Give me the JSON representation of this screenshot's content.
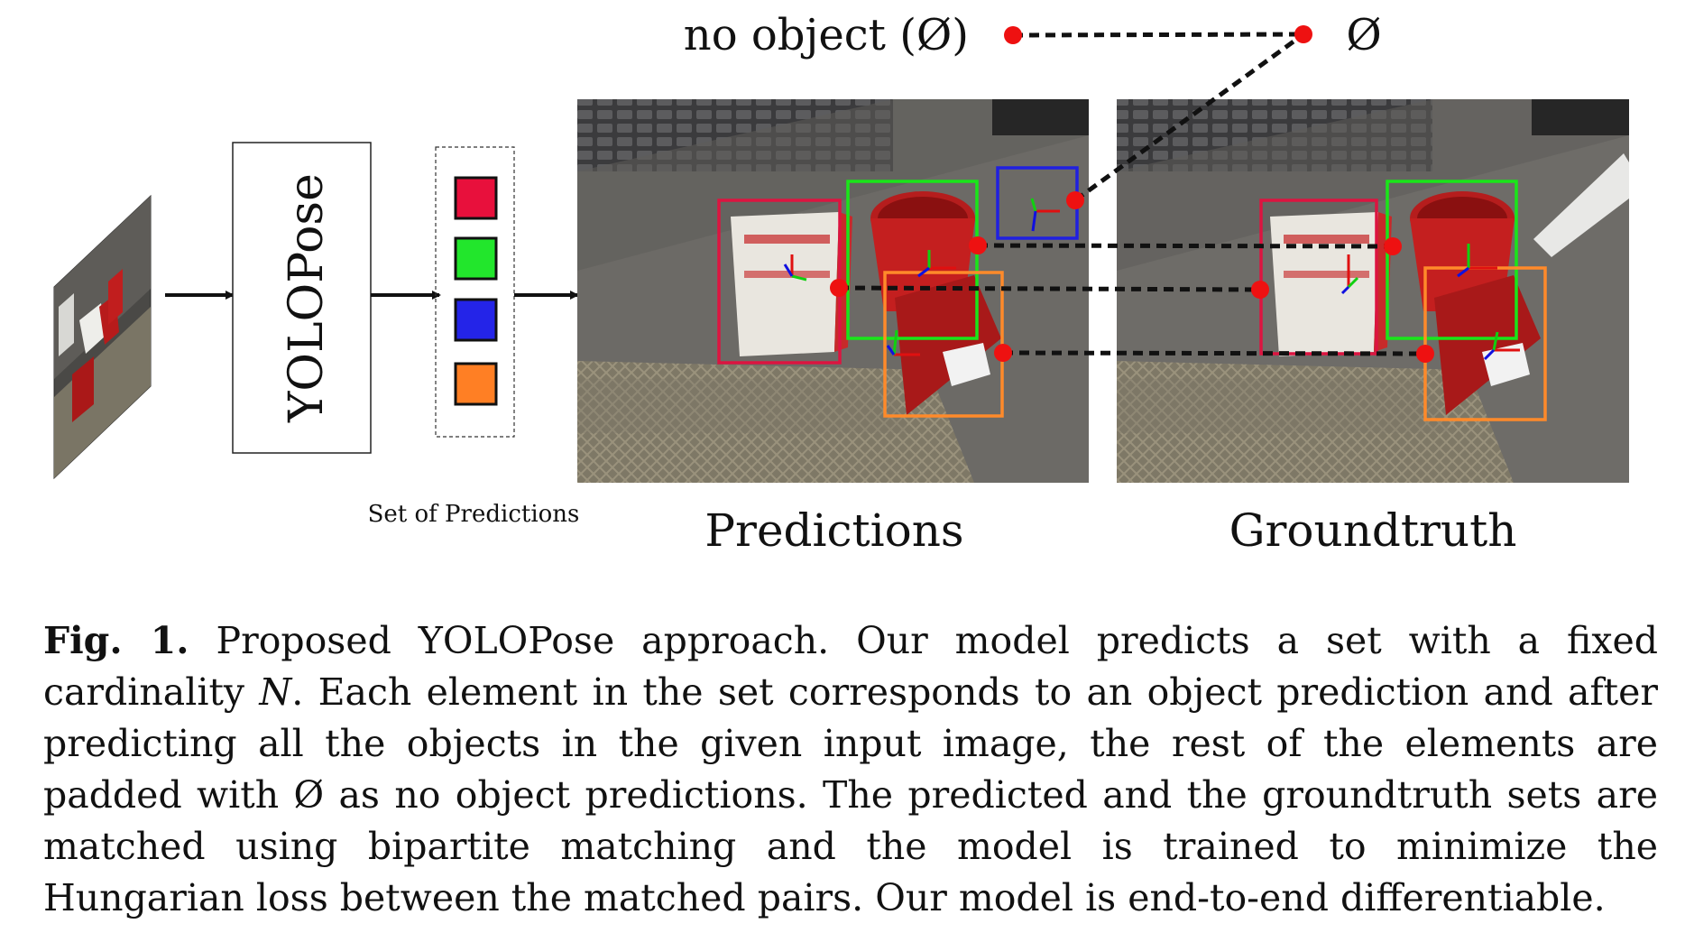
{
  "figure": {
    "yolopose_label": "YOLOPose",
    "set_label": "Set of Predictions",
    "predictions_label": "Predictions",
    "groundtruth_label": "Groundtruth",
    "no_object_label": "no object (Ø)",
    "empty_symbol": "Ø",
    "set_colors": [
      "#e8103c",
      "#22e62c",
      "#2424e8",
      "#ff7f24"
    ],
    "box_colors": {
      "box_a": "#dc1440",
      "box_b": "#19e619",
      "box_c": "#ff8a2a",
      "box_d": "#2020e0"
    },
    "match_dot_color": "#ee1111"
  },
  "caption": {
    "label": "Fig. 1.",
    "part1": " Proposed YOLOPose approach. Our model predicts a set with a fixed cardinality ",
    "math_n": "N",
    "part2": ". Each element in the set corresponds to an object prediction and after predicting all the objects in the given input image, the rest of the elements are padded with Ø as no object predictions. The predicted and the groundtruth sets are matched using bipartite matching and the model is trained to minimize the Hungarian loss between the matched pairs. Our model is end-to-end differentiable."
  }
}
